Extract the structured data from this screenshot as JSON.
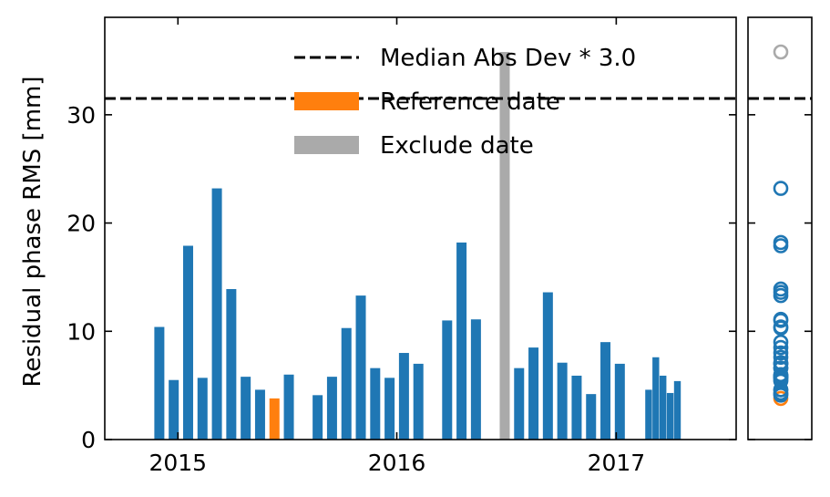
{
  "chart_data": {
    "type": "bar",
    "title": "",
    "xlabel": "",
    "ylabel": "Residual phase RMS [mm]",
    "ylim": [
      0,
      39
    ],
    "yticks": [
      "0",
      "10",
      "20",
      "30"
    ],
    "xticks": [
      "2015",
      "2016",
      "2017"
    ],
    "grid": false,
    "legend_position": "top-right",
    "threshold": {
      "value": 31.5,
      "label": "Median Abs Dev * 3.0",
      "color": "#000000"
    },
    "legend": [
      {
        "key": "threshold",
        "label": "Median Abs Dev * 3.0",
        "style": "dashed-line",
        "color": "#000000"
      },
      {
        "key": "reference",
        "label": "Reference date",
        "style": "patch",
        "color": "#ff7f0e"
      },
      {
        "key": "exclude",
        "label": "Exclude date",
        "style": "patch",
        "color": "#aaaaaa"
      }
    ],
    "colors": {
      "normal": "#1f77b4",
      "reference": "#ff7f0e",
      "exclude": "#aaaaaa"
    },
    "bars": [
      {
        "date": "2014-12-01",
        "value": 10.4,
        "status": "normal"
      },
      {
        "date": "2014-12-25",
        "value": 5.5,
        "status": "normal"
      },
      {
        "date": "2015-01-18",
        "value": 17.9,
        "status": "normal"
      },
      {
        "date": "2015-02-11",
        "value": 5.7,
        "status": "normal"
      },
      {
        "date": "2015-03-07",
        "value": 23.2,
        "status": "normal"
      },
      {
        "date": "2015-03-31",
        "value": 13.9,
        "status": "normal"
      },
      {
        "date": "2015-04-24",
        "value": 5.8,
        "status": "normal"
      },
      {
        "date": "2015-05-18",
        "value": 4.6,
        "status": "normal"
      },
      {
        "date": "2015-06-11",
        "value": 3.8,
        "status": "reference"
      },
      {
        "date": "2015-07-05",
        "value": 6.0,
        "status": "normal"
      },
      {
        "date": "2015-08-22",
        "value": 4.1,
        "status": "normal"
      },
      {
        "date": "2015-09-15",
        "value": 5.8,
        "status": "normal"
      },
      {
        "date": "2015-10-09",
        "value": 10.3,
        "status": "normal"
      },
      {
        "date": "2015-11-02",
        "value": 13.3,
        "status": "normal"
      },
      {
        "date": "2015-11-26",
        "value": 6.6,
        "status": "normal"
      },
      {
        "date": "2015-12-20",
        "value": 5.7,
        "status": "normal"
      },
      {
        "date": "2016-01-13",
        "value": 8.0,
        "status": "normal"
      },
      {
        "date": "2016-02-06",
        "value": 7.0,
        "status": "normal"
      },
      {
        "date": "2016-03-25",
        "value": 11.0,
        "status": "normal"
      },
      {
        "date": "2016-04-18",
        "value": 18.2,
        "status": "normal"
      },
      {
        "date": "2016-05-12",
        "value": 11.1,
        "status": "normal"
      },
      {
        "date": "2016-06-29",
        "value": 35.8,
        "status": "exclude"
      },
      {
        "date": "2016-07-23",
        "value": 6.6,
        "status": "normal"
      },
      {
        "date": "2016-08-16",
        "value": 8.5,
        "status": "normal"
      },
      {
        "date": "2016-09-09",
        "value": 13.6,
        "status": "normal"
      },
      {
        "date": "2016-10-03",
        "value": 7.1,
        "status": "normal"
      },
      {
        "date": "2016-10-27",
        "value": 5.9,
        "status": "normal"
      },
      {
        "date": "2016-11-20",
        "value": 4.2,
        "status": "normal"
      },
      {
        "date": "2016-12-14",
        "value": 9.0,
        "status": "normal"
      },
      {
        "date": "2017-01-07",
        "value": 7.0,
        "status": "normal"
      },
      {
        "date": "2017-02-24",
        "value": 4.6,
        "status": "normal"
      },
      {
        "date": "2017-03-08",
        "value": 7.6,
        "status": "normal"
      },
      {
        "date": "2017-03-20",
        "value": 5.9,
        "status": "normal"
      },
      {
        "date": "2017-04-01",
        "value": 4.3,
        "status": "normal"
      },
      {
        "date": "2017-04-13",
        "value": 5.4,
        "status": "normal"
      }
    ]
  }
}
